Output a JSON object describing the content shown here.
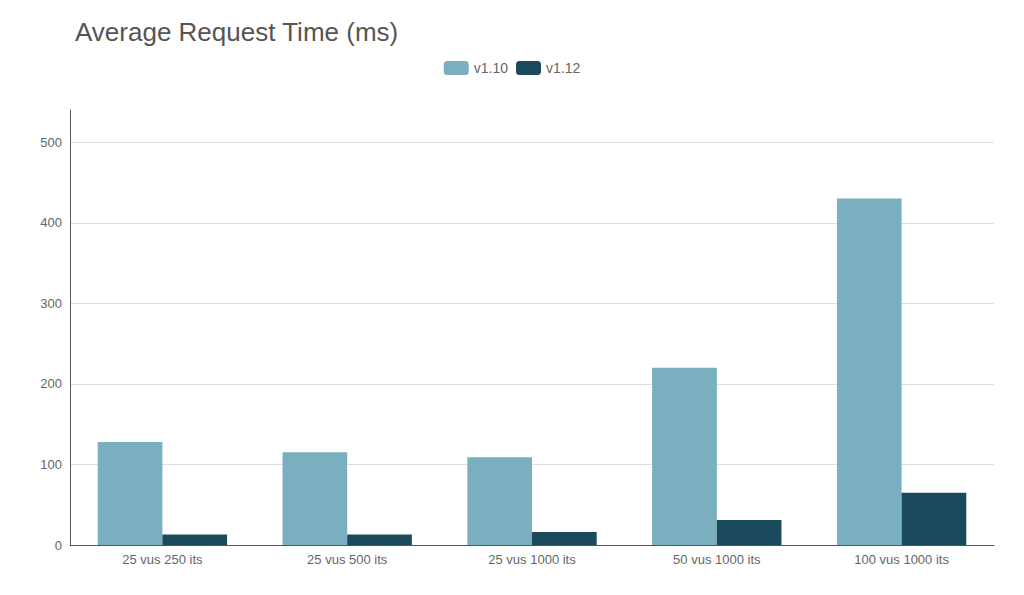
{
  "chart_data": {
    "type": "bar",
    "title": "Average Request Time (ms)",
    "categories": [
      "25 vus 250 its",
      "25 vus 500 its",
      "25 vus 1000 its",
      "50 vus 1000 its",
      "100 vus 1000 its"
    ],
    "series": [
      {
        "name": "v1.10",
        "color": "#7aafc0",
        "values": [
          128,
          115,
          109,
          220,
          430
        ]
      },
      {
        "name": "v1.12",
        "color": "#1a4a5c",
        "values": [
          13,
          13,
          16,
          31,
          65
        ]
      }
    ],
    "ylim": [
      0,
      540
    ],
    "yticks": [
      0,
      100,
      200,
      300,
      400,
      500
    ],
    "grid": true,
    "legend": "top"
  }
}
